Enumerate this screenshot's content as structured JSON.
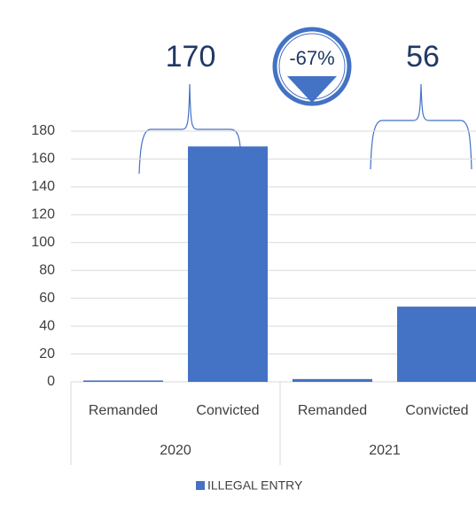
{
  "chart_data": {
    "type": "bar",
    "categories": [
      "Remanded",
      "Convicted",
      "Remanded",
      "Convicted"
    ],
    "groups": [
      "2020",
      "2021"
    ],
    "series": [
      {
        "name": "ILLEGAL ENTRY",
        "color": "#4472c4",
        "values": [
          1,
          169,
          2,
          54
        ]
      }
    ],
    "ylim": [
      0,
      180
    ],
    "yticks": [
      0,
      20,
      40,
      60,
      80,
      100,
      120,
      140,
      160,
      180
    ],
    "grid": true,
    "legend": "bottom",
    "annotations": [
      "170",
      "56",
      "-67%"
    ]
  }
}
